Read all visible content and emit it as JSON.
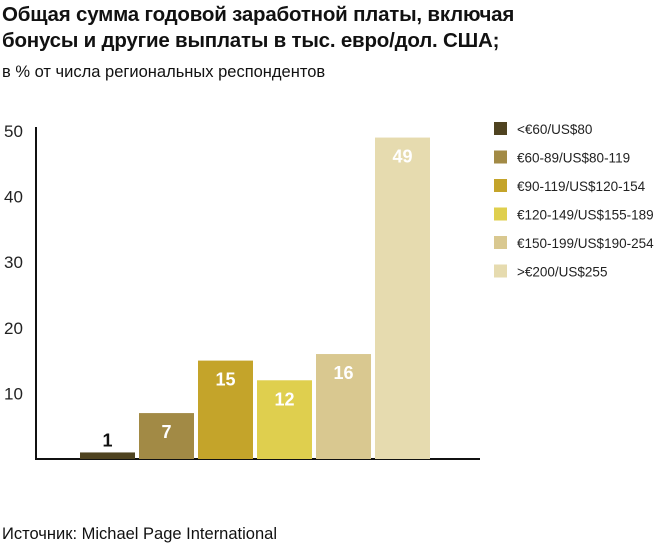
{
  "chart_data": {
    "type": "bar",
    "title_lines": [
      "Общая сумма годовой заработной платы, включая",
      "бонусы и другие выплаты в тыс. евро/дол. США;"
    ],
    "subtitle": "в % от числа региональных респондентов",
    "source": "Источник: Michael Page International",
    "ylim": [
      0,
      50
    ],
    "yticks": [
      10,
      20,
      30,
      40,
      50
    ],
    "grid": false,
    "legend_position": "right",
    "categories": [
      "<€60/US$80",
      "€60-89/US$80-119",
      "€90-119/US$120-154",
      "€120-149/US$155-189",
      "€150-199/US$190-254",
      ">€200/US$255"
    ],
    "values": [
      1,
      7,
      15,
      12,
      16,
      49
    ],
    "colors": [
      "#4f4320",
      "#a28a45",
      "#c4a42a",
      "#dfcf4e",
      "#d9c890",
      "#e6dbaf"
    ],
    "label_colors": [
      "#111111",
      "#ffffff",
      "#ffffff",
      "#ffffff",
      "#ffffff",
      "#ffffff"
    ]
  }
}
